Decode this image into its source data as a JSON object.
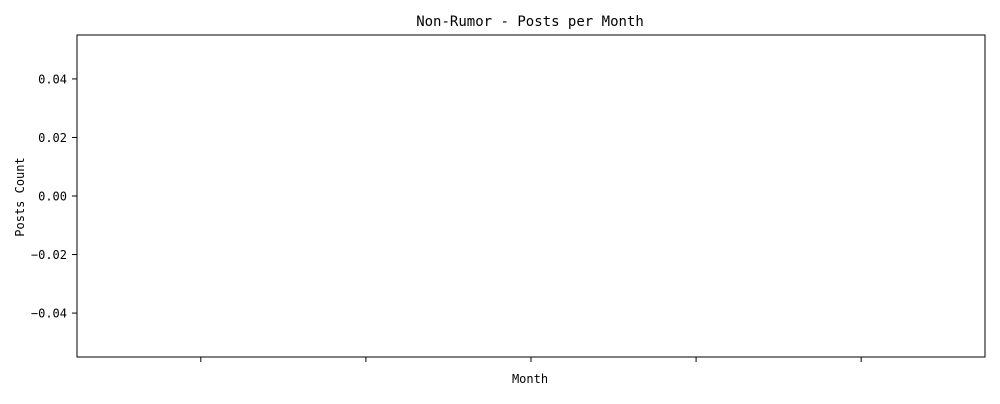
{
  "chart_data": {
    "type": "line",
    "title": "Non-Rumor - Posts per Month",
    "xlabel": "Month",
    "ylabel": "Posts Count",
    "series": [],
    "y_ticks": [
      0.04,
      0.02,
      0.0,
      -0.02,
      -0.04
    ],
    "y_tick_labels": [
      "0.04",
      "0.02",
      "0.00",
      "−0.02",
      "−0.04"
    ],
    "ylim": [
      -0.055,
      0.055
    ],
    "x_tick_count": 5,
    "x_tick_labels": [
      "",
      "",
      "",
      "",
      ""
    ],
    "grid": false,
    "legend": "none"
  }
}
